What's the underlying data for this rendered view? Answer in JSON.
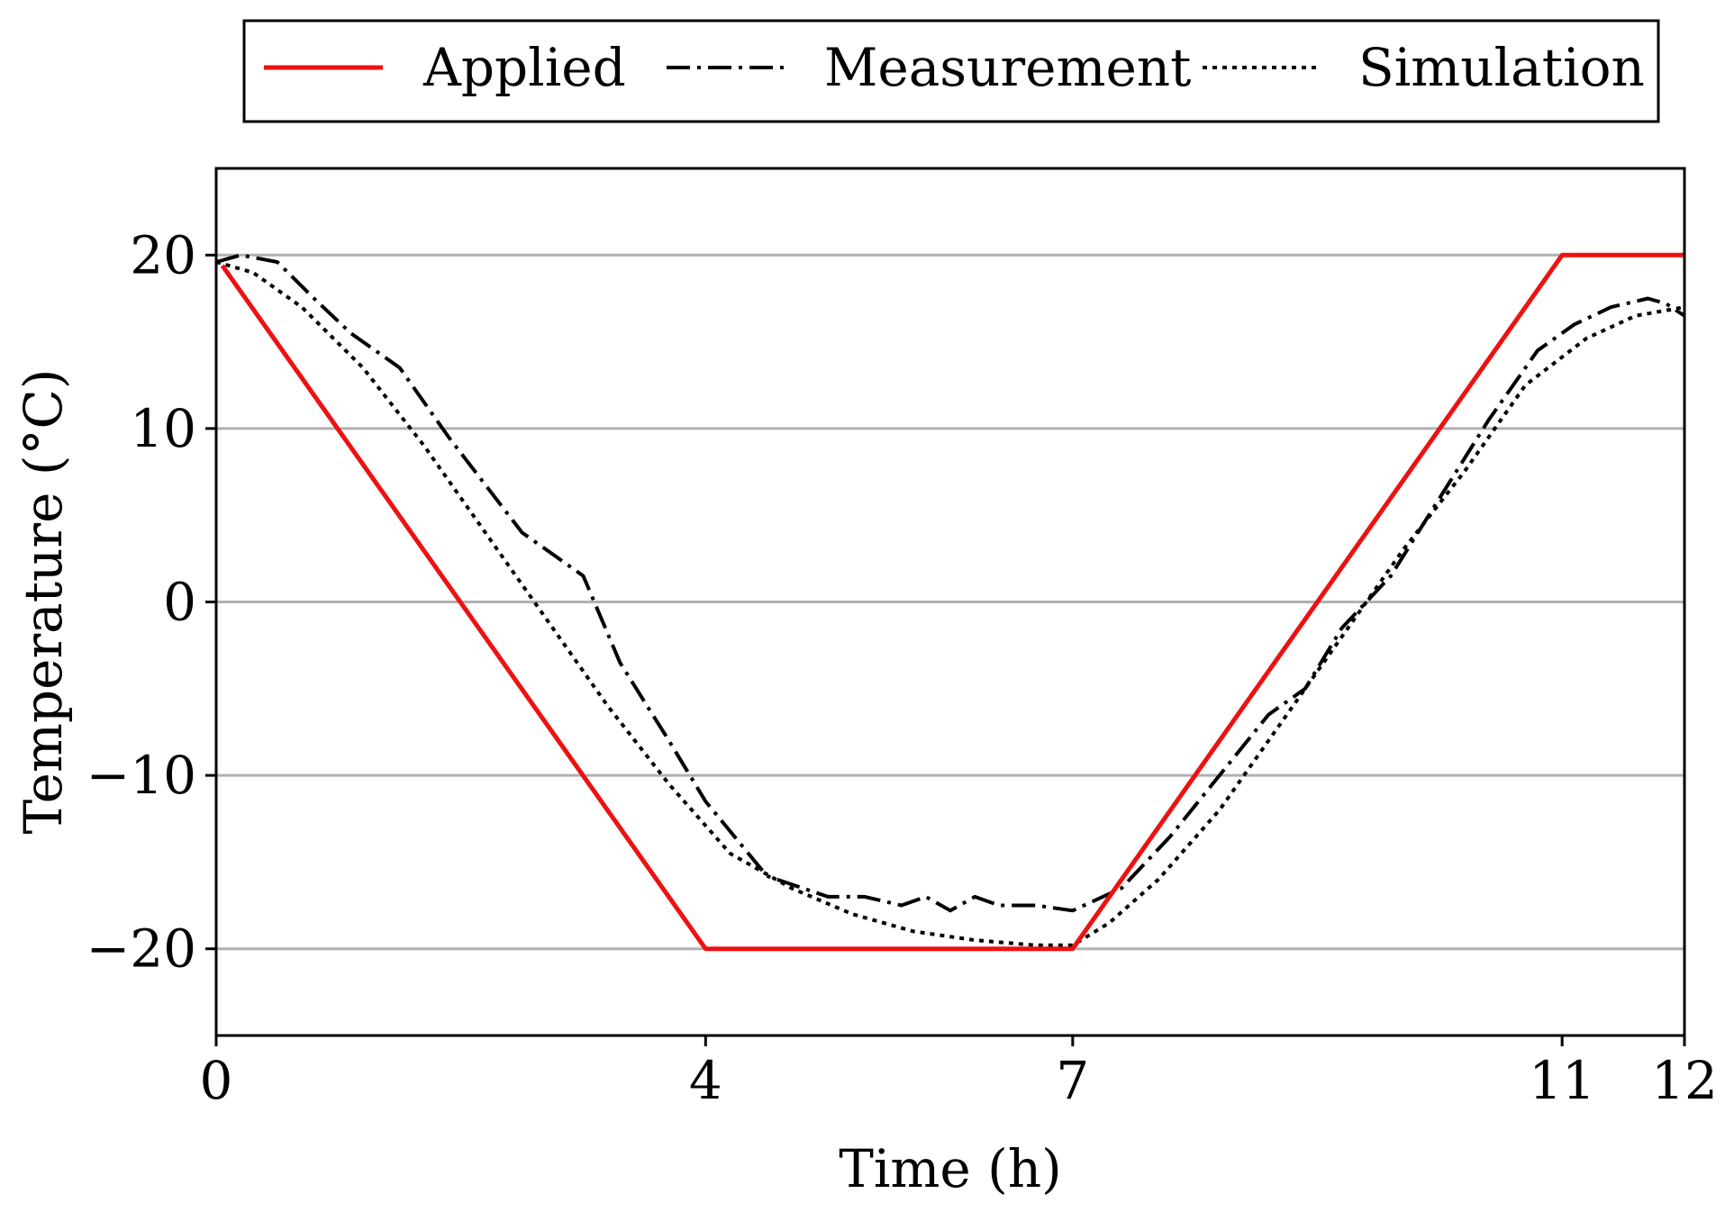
{
  "chart_data": {
    "type": "line",
    "title": "",
    "xlabel": "Time (h)",
    "ylabel": "Temperature (°C)",
    "xlim": [
      0,
      12
    ],
    "ylim": [
      -25,
      25
    ],
    "xticks": [
      0,
      4,
      7,
      11,
      12
    ],
    "yticks": [
      -20,
      -10,
      0,
      10,
      20
    ],
    "ytick_labels": [
      "−20",
      "−10",
      "0",
      "10",
      "20"
    ],
    "grid": "horizontal",
    "legend_position": "top-center",
    "colors": {
      "applied": "#ee1111",
      "measurement": "#000000",
      "simulation": "#000000",
      "grid": "#b0b0b0"
    },
    "series": [
      {
        "name": "Applied",
        "style": "solid",
        "x": [
          0.05,
          4,
          7,
          11,
          12
        ],
        "y": [
          19.4,
          -20,
          -20,
          20,
          20
        ]
      },
      {
        "name": "Measurement",
        "style": "dashdot",
        "x": [
          0,
          0.2,
          0.5,
          0.8,
          1.1,
          1.5,
          1.9,
          2.5,
          2.8,
          3.0,
          3.3,
          3.7,
          4.0,
          4.5,
          5.0,
          5.3,
          5.6,
          5.8,
          6.0,
          6.2,
          6.4,
          6.7,
          7.0,
          7.4,
          7.8,
          8.2,
          8.6,
          8.9,
          9.2,
          9.6,
          10.0,
          10.4,
          10.8,
          11.1,
          11.4,
          11.7,
          11.85,
          12.0
        ],
        "y": [
          19.6,
          20.0,
          19.6,
          17.5,
          15.5,
          13.5,
          9.5,
          4.0,
          2.5,
          1.5,
          -3.5,
          -8.0,
          -11.5,
          -15.8,
          -17.0,
          -17.0,
          -17.5,
          -17.0,
          -17.8,
          -17.0,
          -17.5,
          -17.5,
          -17.8,
          -16.5,
          -13.5,
          -10.0,
          -6.5,
          -5.0,
          -1.5,
          1.5,
          6.0,
          10.5,
          14.5,
          16.0,
          17.0,
          17.5,
          17.2,
          16.5
        ]
      },
      {
        "name": "Simulation",
        "style": "dotted",
        "x": [
          0,
          0.3,
          0.7,
          1.2,
          1.7,
          2.2,
          2.7,
          3.2,
          3.7,
          4.2,
          4.7,
          5.2,
          5.7,
          6.2,
          6.7,
          7.0,
          7.3,
          7.7,
          8.2,
          8.7,
          9.2,
          9.7,
          10.2,
          10.7,
          11.2,
          11.6,
          12.0
        ],
        "y": [
          19.6,
          19.0,
          17.0,
          13.5,
          9.0,
          4.0,
          -1.0,
          -6.0,
          -10.5,
          -14.5,
          -16.5,
          -18.0,
          -19.0,
          -19.5,
          -19.8,
          -19.8,
          -18.5,
          -16.0,
          -12.0,
          -7.0,
          -2.0,
          3.0,
          7.5,
          12.5,
          15.2,
          16.5,
          17.0
        ]
      }
    ]
  }
}
